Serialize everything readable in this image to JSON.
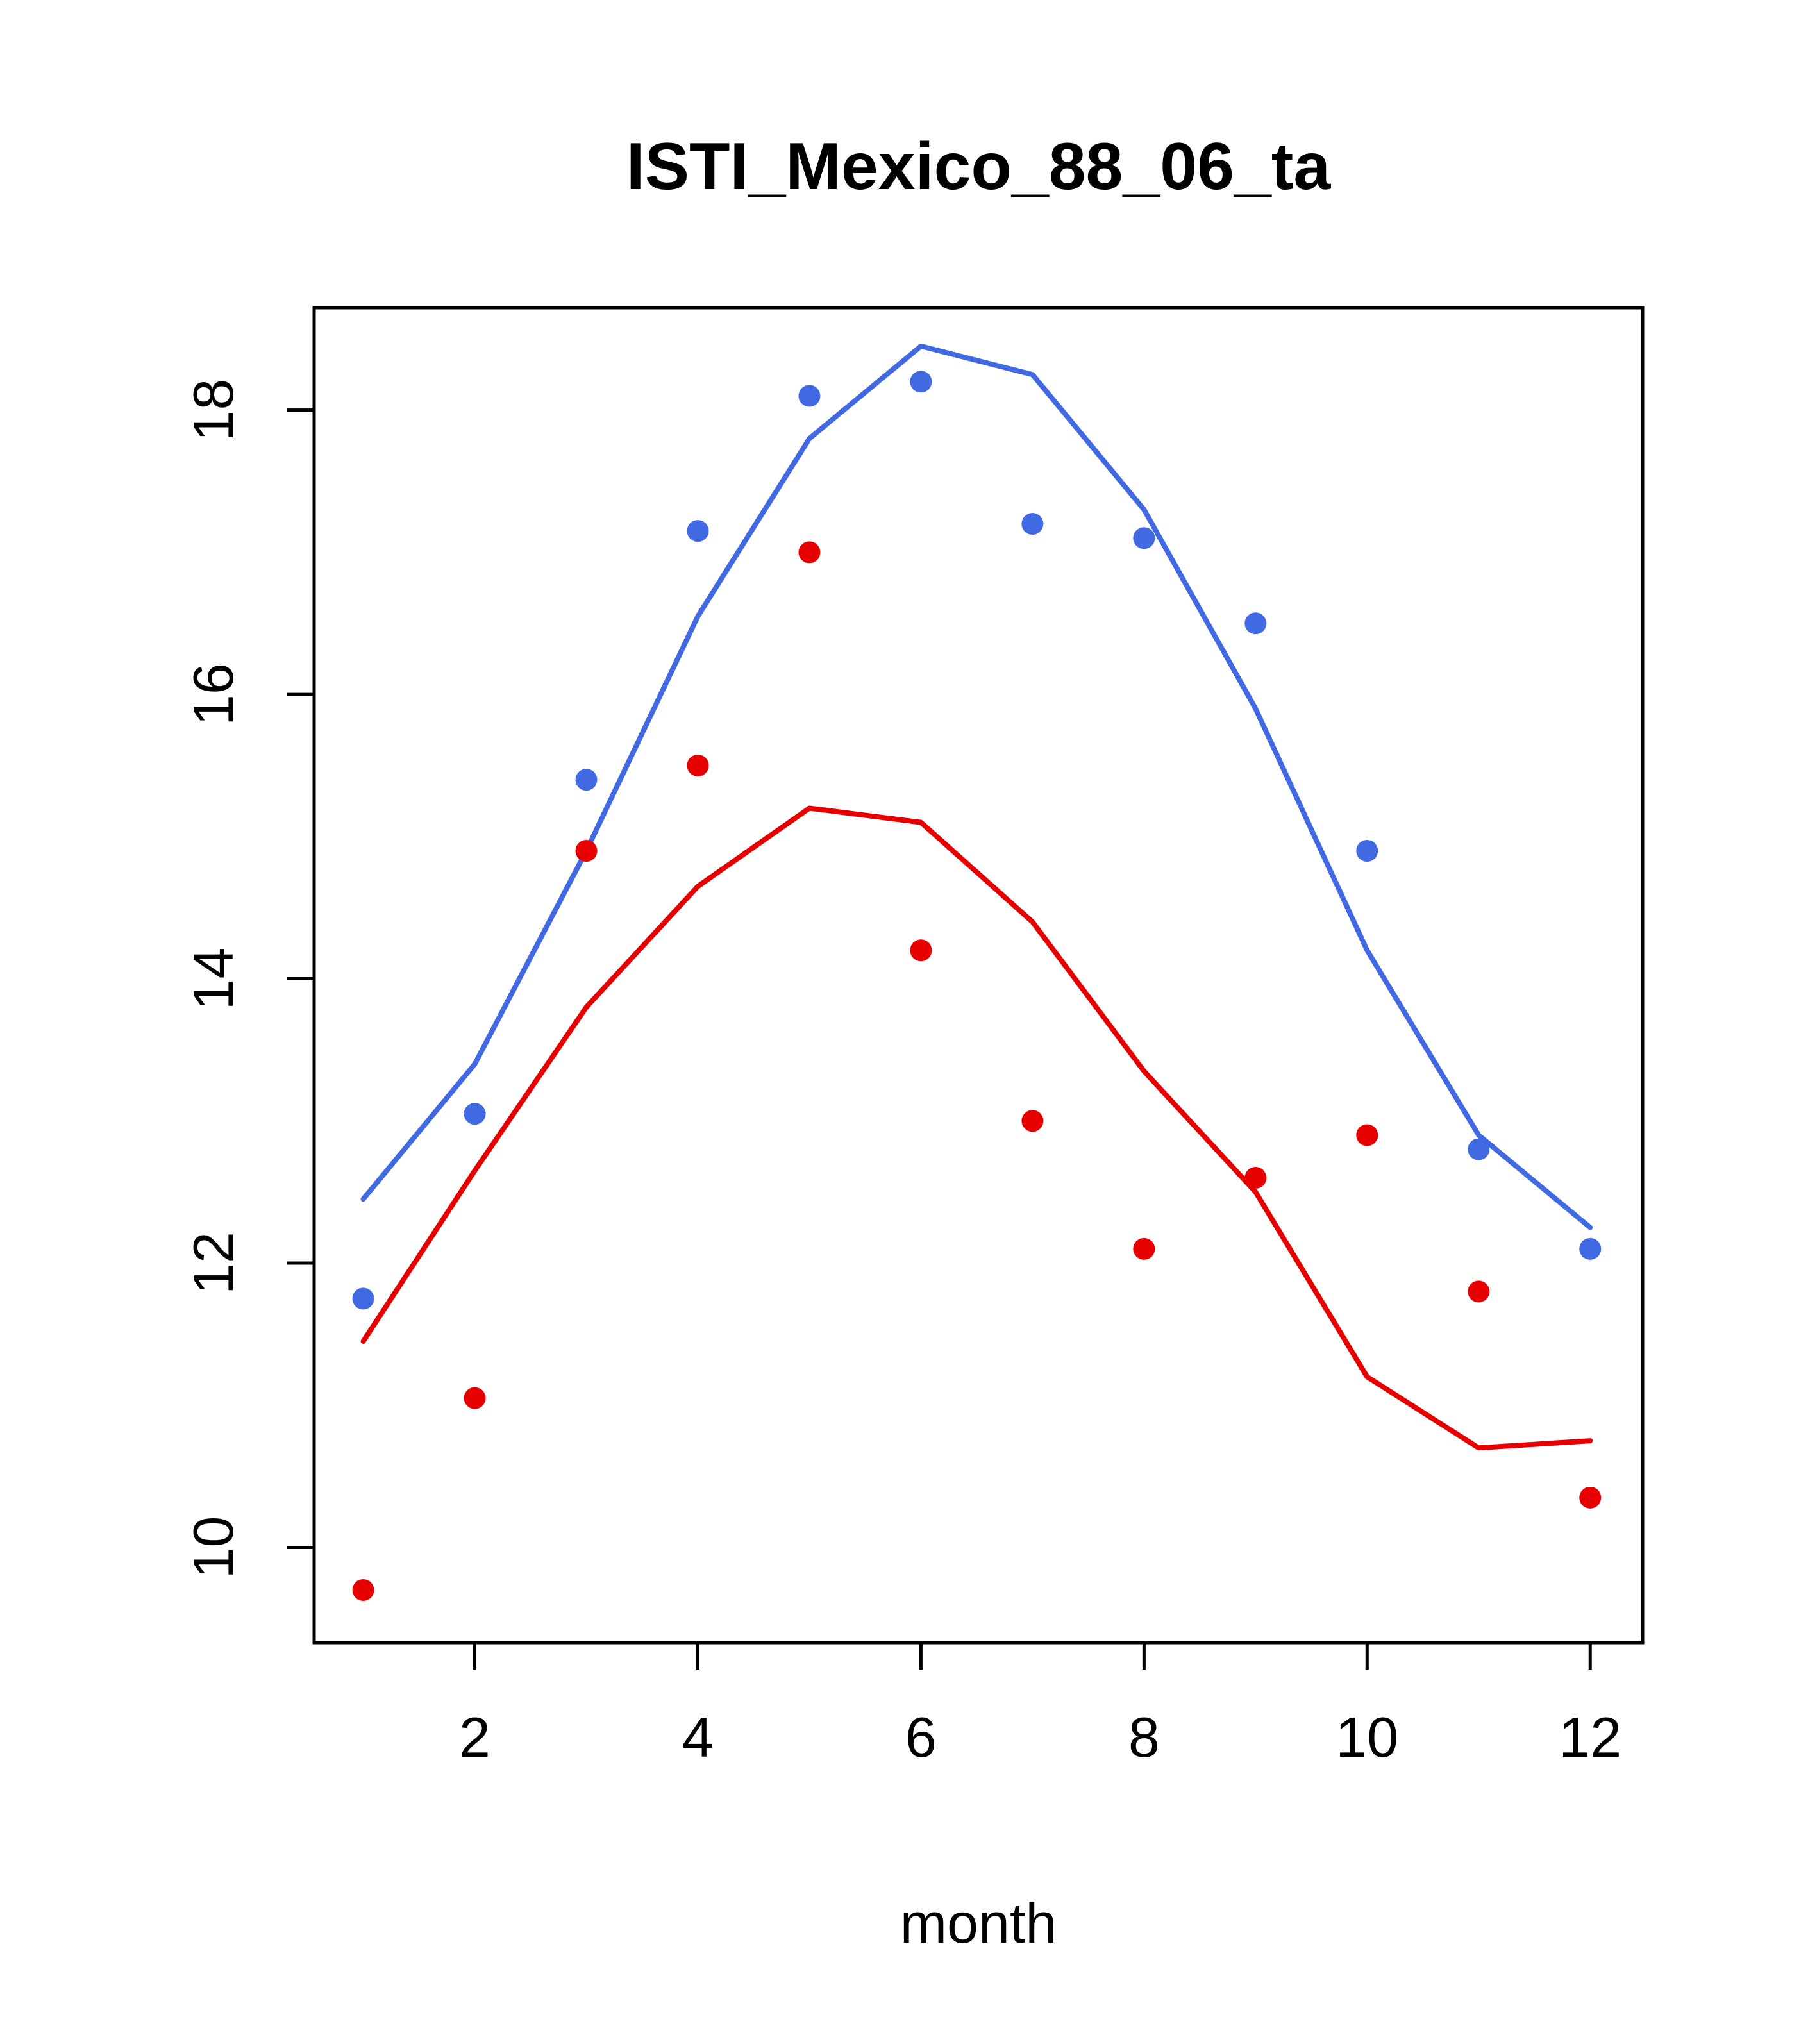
{
  "chart_data": {
    "type": "line",
    "title": "ISTI_Mexico_88_06_ta",
    "xlabel": "month",
    "ylabel": "",
    "x": [
      1,
      2,
      3,
      4,
      5,
      6,
      7,
      8,
      9,
      10,
      11,
      12
    ],
    "xticks": [
      2,
      4,
      6,
      8,
      10,
      12
    ],
    "yticks": [
      10,
      12,
      14,
      16,
      18
    ],
    "xlim": [
      0.56,
      12.47
    ],
    "ylim": [
      9.33,
      18.72
    ],
    "grid": false,
    "legend": "none",
    "colors": {
      "blue": "#4169e1",
      "red": "#e60000",
      "axis": "#000000"
    },
    "series": [
      {
        "name": "blue-points",
        "render": "scatter",
        "color": "#4169e1",
        "values": [
          11.75,
          13.05,
          15.4,
          17.15,
          18.1,
          18.2,
          17.2,
          17.1,
          16.5,
          14.9,
          12.8,
          12.1
        ]
      },
      {
        "name": "blue-line",
        "render": "line",
        "color": "#4169e1",
        "values": [
          12.45,
          13.4,
          14.9,
          16.55,
          17.8,
          18.45,
          18.25,
          17.3,
          15.9,
          14.2,
          12.9,
          12.25
        ]
      },
      {
        "name": "red-points",
        "render": "scatter",
        "color": "#e60000",
        "values": [
          9.7,
          11.05,
          14.9,
          15.5,
          17.0,
          14.2,
          13.0,
          12.1,
          12.6,
          12.9,
          11.8,
          10.35
        ]
      },
      {
        "name": "red-line",
        "render": "line",
        "color": "#e60000",
        "values": [
          11.45,
          12.65,
          13.8,
          14.65,
          15.2,
          15.1,
          14.4,
          13.35,
          12.5,
          11.2,
          10.7,
          10.75
        ]
      }
    ]
  }
}
